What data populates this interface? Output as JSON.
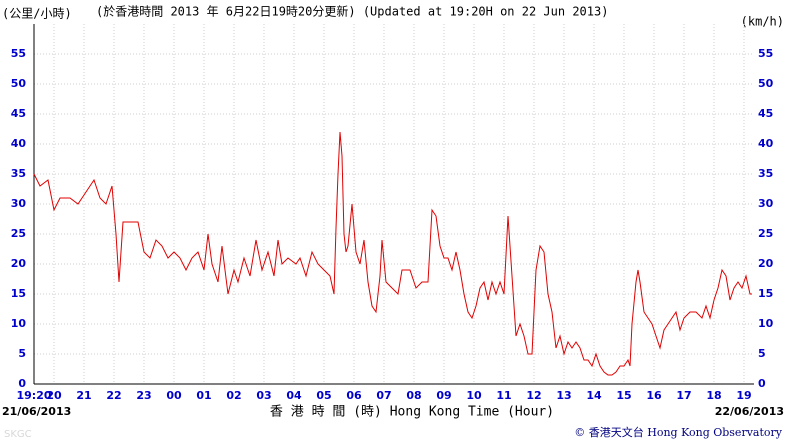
{
  "chart_data": {
    "type": "line",
    "unit_left": "(公里/小時)",
    "title": "(於香港時間 2013 年 6月22日19時20分更新) (Updated at 19:20H on 22 Jun 2013)",
    "unit_right": "(km/h)",
    "xlabel": "香 港 時 間 (時) Hong Kong Time (Hour)",
    "start_date": "21/06/2013",
    "end_date": "22/06/2013",
    "credit": "© 香港天文台 Hong Kong Observatory",
    "station": "SKGC",
    "grid": true,
    "xlim": [
      0,
      1440
    ],
    "ylim": [
      0,
      60
    ],
    "yticks": [
      0,
      5,
      10,
      15,
      20,
      25,
      30,
      35,
      40,
      45,
      50,
      55
    ],
    "xticks": [
      {
        "value": 0,
        "label": "19:20"
      },
      {
        "value": 40,
        "label": "20"
      },
      {
        "value": 100,
        "label": "21"
      },
      {
        "value": 160,
        "label": "22"
      },
      {
        "value": 220,
        "label": "23"
      },
      {
        "value": 280,
        "label": "00"
      },
      {
        "value": 340,
        "label": "01"
      },
      {
        "value": 400,
        "label": "02"
      },
      {
        "value": 460,
        "label": "03"
      },
      {
        "value": 520,
        "label": "04"
      },
      {
        "value": 580,
        "label": "05"
      },
      {
        "value": 640,
        "label": "06"
      },
      {
        "value": 700,
        "label": "07"
      },
      {
        "value": 760,
        "label": "08"
      },
      {
        "value": 820,
        "label": "09"
      },
      {
        "value": 880,
        "label": "10"
      },
      {
        "value": 940,
        "label": "11"
      },
      {
        "value": 1000,
        "label": "12"
      },
      {
        "value": 1060,
        "label": "13"
      },
      {
        "value": 1120,
        "label": "14"
      },
      {
        "value": 1180,
        "label": "15"
      },
      {
        "value": 1240,
        "label": "16"
      },
      {
        "value": 1300,
        "label": "17"
      },
      {
        "value": 1360,
        "label": "18"
      },
      {
        "value": 1420,
        "label": "19"
      }
    ],
    "x": [
      0,
      12,
      28,
      40,
      52,
      72,
      88,
      104,
      120,
      132,
      144,
      156,
      164,
      170,
      178,
      192,
      208,
      220,
      232,
      244,
      256,
      268,
      280,
      292,
      304,
      316,
      328,
      340,
      348,
      356,
      368,
      376,
      388,
      400,
      408,
      420,
      432,
      444,
      456,
      468,
      480,
      488,
      496,
      508,
      524,
      532,
      544,
      556,
      568,
      580,
      592,
      600,
      604,
      608,
      612,
      616,
      620,
      624,
      628,
      636,
      644,
      652,
      660,
      668,
      676,
      684,
      692,
      696,
      704,
      716,
      728,
      736,
      752,
      764,
      776,
      788,
      796,
      804,
      812,
      820,
      828,
      836,
      844,
      852,
      860,
      868,
      876,
      884,
      892,
      900,
      908,
      916,
      924,
      932,
      940,
      948,
      956,
      964,
      972,
      980,
      988,
      996,
      1004,
      1012,
      1020,
      1028,
      1036,
      1044,
      1052,
      1060,
      1068,
      1076,
      1084,
      1092,
      1100,
      1108,
      1116,
      1124,
      1132,
      1140,
      1148,
      1156,
      1164,
      1172,
      1180,
      1188,
      1192,
      1196,
      1204,
      1208,
      1212,
      1220,
      1228,
      1236,
      1244,
      1252,
      1260,
      1268,
      1276,
      1284,
      1292,
      1300,
      1312,
      1324,
      1336,
      1344,
      1352,
      1360,
      1368,
      1376,
      1384,
      1392,
      1400,
      1408,
      1416,
      1424,
      1432,
      1436
    ],
    "series": [
      {
        "color": "#e00000",
        "values": [
          35,
          33,
          34,
          29,
          31,
          31,
          30,
          32,
          34,
          31,
          30,
          33,
          25,
          17,
          27,
          27,
          27,
          22,
          21,
          24,
          23,
          21,
          22,
          21,
          19,
          21,
          22,
          19,
          25,
          20,
          17,
          23,
          15,
          19,
          17,
          21,
          18,
          24,
          19,
          22,
          18,
          24,
          20,
          21,
          20,
          21,
          18,
          22,
          20,
          19,
          18,
          15,
          26,
          35,
          42,
          38,
          25,
          22,
          23,
          30,
          22,
          20,
          24,
          17,
          13,
          12,
          18,
          24,
          17,
          16,
          15,
          19,
          19,
          16,
          17,
          17,
          29,
          28,
          23,
          21,
          21,
          19,
          22,
          19,
          15,
          12,
          11,
          13,
          16,
          17,
          14,
          17,
          15,
          17,
          15,
          28,
          18,
          8,
          10,
          8,
          5,
          5,
          19,
          23,
          22,
          15,
          12,
          6,
          8,
          5,
          7,
          6,
          7,
          6,
          4,
          4,
          3,
          5,
          3,
          2,
          1.5,
          1.5,
          2,
          3,
          3,
          4,
          3,
          10,
          17,
          19,
          17,
          12,
          11,
          10,
          8,
          6,
          9,
          10,
          11,
          12,
          9,
          11,
          12,
          12,
          11,
          13,
          11,
          14,
          16,
          19,
          18,
          14,
          16,
          17,
          16,
          18,
          15,
          15
        ]
      }
    ]
  }
}
